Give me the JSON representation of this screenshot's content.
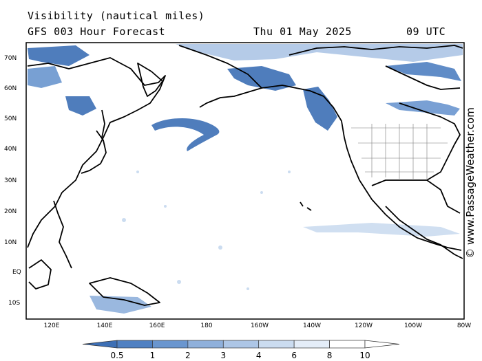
{
  "header": {
    "title": "Visibility (nautical miles)",
    "subtitle": "GFS 003 Hour Forecast",
    "date": "Thu 01 May 2025",
    "time": "09 UTC"
  },
  "credit": "© www.PassageWeather.com",
  "map": {
    "lat_labels": [
      "70N",
      "60N",
      "50N",
      "40N",
      "30N",
      "20N",
      "10N",
      "EQ",
      "10S"
    ],
    "lon_labels": [
      "120E",
      "140E",
      "160E",
      "180",
      "160W",
      "140W",
      "120W",
      "100W",
      "80W"
    ],
    "background": "#ffffff",
    "coast_color": "#000000"
  },
  "legend": {
    "labels": [
      "0.5",
      "1",
      "2",
      "3",
      "4",
      "6",
      "8",
      "10"
    ],
    "colors": [
      "#3d6fb5",
      "#4f80c2",
      "#6a96cf",
      "#8fb0db",
      "#adc6e6",
      "#cbdcf0",
      "#e4edf8",
      "#ffffff"
    ]
  }
}
